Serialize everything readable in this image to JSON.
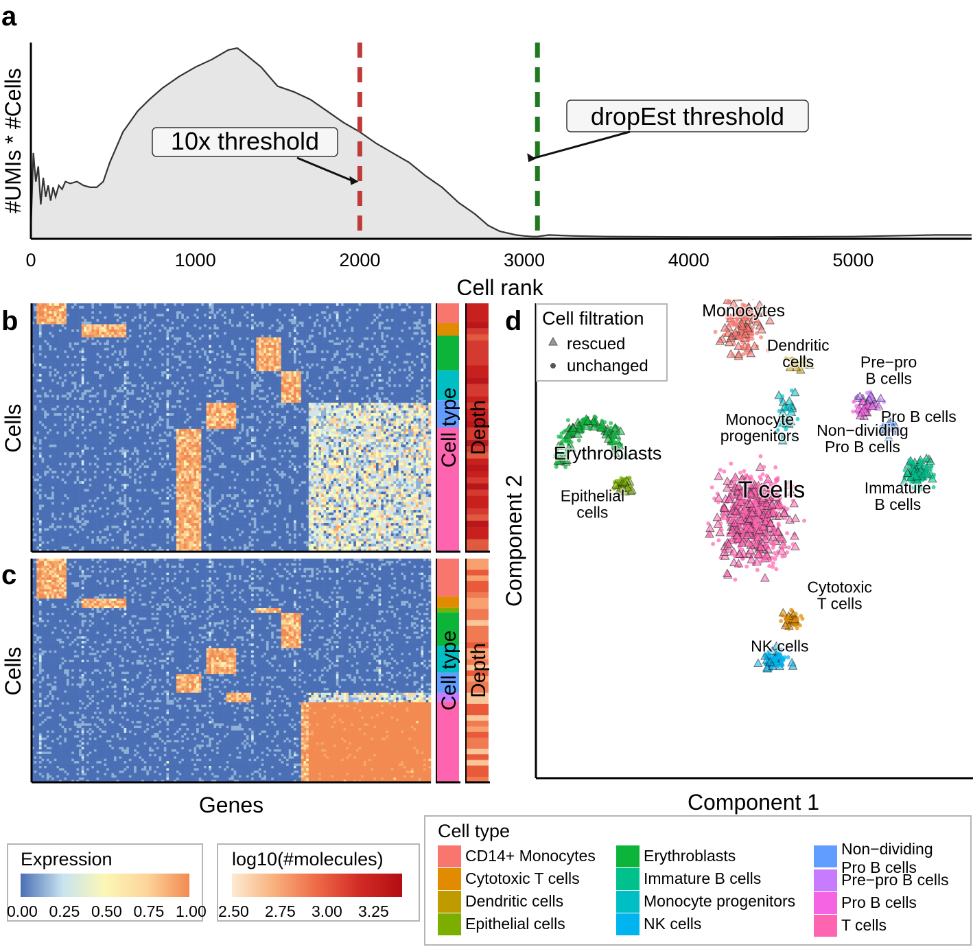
{
  "panels": {
    "a": "a",
    "b": "b",
    "c": "c",
    "d": "d"
  },
  "chart_data": [
    {
      "id": "a",
      "type": "area",
      "xlabel": "Cell rank",
      "ylabel": "#UMIs * #Cells",
      "xlim": [
        0,
        5720
      ],
      "xticks": [
        0,
        1000,
        2000,
        3000,
        4000,
        5000
      ],
      "x": [
        0,
        15,
        30,
        45,
        60,
        75,
        90,
        105,
        120,
        135,
        150,
        170,
        190,
        210,
        240,
        280,
        320,
        360,
        400,
        440,
        480,
        560,
        650,
        720,
        800,
        900,
        1000,
        1100,
        1200,
        1255,
        1300,
        1400,
        1500,
        1600,
        1700,
        1800,
        1900,
        2000,
        2100,
        2200,
        2300,
        2400,
        2500,
        2600,
        2700,
        2780,
        2850,
        2900,
        2950,
        3000,
        3050,
        3080,
        3150,
        3300,
        3500,
        4000,
        4500,
        5000,
        5500,
        5720
      ],
      "values": [
        0.05,
        0.45,
        0.3,
        0.38,
        0.18,
        0.32,
        0.22,
        0.28,
        0.2,
        0.27,
        0.22,
        0.28,
        0.26,
        0.3,
        0.29,
        0.3,
        0.28,
        0.27,
        0.27,
        0.3,
        0.4,
        0.56,
        0.67,
        0.73,
        0.79,
        0.85,
        0.9,
        0.94,
        0.99,
        1.0,
        0.97,
        0.9,
        0.8,
        0.77,
        0.73,
        0.67,
        0.61,
        0.56,
        0.5,
        0.45,
        0.4,
        0.33,
        0.27,
        0.19,
        0.13,
        0.07,
        0.04,
        0.03,
        0.02,
        0.015,
        0.012,
        0.012,
        0.02,
        0.015,
        0.012,
        0.01,
        0.01,
        0.012,
        0.02,
        0.02
      ],
      "thresholds": [
        {
          "name": "10x threshold",
          "x": 2000,
          "color": "#c03a3a"
        },
        {
          "name": "dropEst threshold",
          "x": 3080,
          "color": "#1f7a1f"
        }
      ]
    },
    {
      "id": "b",
      "type": "heatmap",
      "xlabel": "Genes",
      "ylabel": "Cells",
      "side_bars": [
        "Cell type",
        "Depth"
      ],
      "cell_type_blocks": [
        {
          "type": "CD14+ Monocytes",
          "fraction": 0.08
        },
        {
          "type": "Cytotoxic T cells",
          "fraction": 0.05
        },
        {
          "type": "Erythroblasts",
          "fraction": 0.14
        },
        {
          "type": "Monocyte progenitors",
          "fraction": 0.12
        },
        {
          "type": "Non-dividing Pro B cells",
          "fraction": 0.11
        },
        {
          "type": "T cells",
          "fraction": 0.5
        }
      ]
    },
    {
      "id": "c",
      "type": "heatmap",
      "ylabel": "Cells",
      "side_bars": [
        "Cell type",
        "Depth"
      ],
      "cell_type_blocks": [
        {
          "type": "CD14+ Monocytes",
          "fraction": 0.17
        },
        {
          "type": "Cytotoxic T cells",
          "fraction": 0.05
        },
        {
          "type": "Epithelial cells",
          "fraction": 0.02
        },
        {
          "type": "Erythroblasts",
          "fraction": 0.15
        },
        {
          "type": "Monocyte progenitors",
          "fraction": 0.12
        },
        {
          "type": "Non-dividing Pro B cells",
          "fraction": 0.09
        },
        {
          "type": "Pre-pro B cells",
          "fraction": 0.04
        },
        {
          "type": "T cells",
          "fraction": 0.36
        }
      ]
    },
    {
      "id": "d",
      "type": "scatter",
      "xlabel": "Component 1",
      "ylabel": "Component 2",
      "legend_title": "Cell filtration",
      "legend_items": [
        {
          "label": "rescued",
          "shape": "triangle"
        },
        {
          "label": "unchanged",
          "shape": "circle"
        }
      ],
      "clusters": [
        {
          "type": "CD14+ Monocytes",
          "label": "CD14+\nMonocytes",
          "cx": -0.05,
          "cy": 0.95,
          "sx": 0.09,
          "sy": 0.12,
          "n": 150
        },
        {
          "type": "Dendritic cells",
          "label": "Dendritic\ncells",
          "cx": 0.2,
          "cy": 0.78,
          "sx": 0.05,
          "sy": 0.03,
          "n": 20
        },
        {
          "type": "Pre-pro B cells",
          "label": "Pre−pro\nB cells",
          "cx": 0.52,
          "cy": 0.62,
          "sx": 0.06,
          "sy": 0.03,
          "n": 30
        },
        {
          "type": "Pro B cells",
          "label": "Pro B cells",
          "cx": 0.5,
          "cy": 0.58,
          "sx": 0.05,
          "sy": 0.03,
          "n": 30
        },
        {
          "type": "Monocyte progenitors",
          "label": "Monocyte\nprogenitors",
          "cx": 0.15,
          "cy": 0.55,
          "sx": 0.04,
          "sy": 0.09,
          "n": 40
        },
        {
          "type": "Non-dividing Pro B cells",
          "label": "Non−dividing\nPro B cells",
          "cx": 0.62,
          "cy": 0.5,
          "sx": 0.04,
          "sy": 0.03,
          "n": 35
        },
        {
          "type": "Erythroblasts",
          "label": "Erythroblasts",
          "cx": -0.75,
          "cy": 0.45,
          "sx": 0.12,
          "sy": 0.15,
          "n": 170
        },
        {
          "type": "Immature B cells",
          "label": "Immature\nB cells",
          "cx": 0.75,
          "cy": 0.3,
          "sx": 0.06,
          "sy": 0.06,
          "n": 120
        },
        {
          "type": "Epithelial cells",
          "label": "Epithelial\ncells",
          "cx": -0.6,
          "cy": 0.25,
          "sx": 0.04,
          "sy": 0.03,
          "n": 35
        },
        {
          "type": "T cells",
          "label": "T cells",
          "cx": 0.0,
          "cy": 0.1,
          "sx": 0.16,
          "sy": 0.2,
          "n": 650
        },
        {
          "type": "Cytotoxic T cells",
          "label": "Cytotoxic\nT cells",
          "cx": 0.17,
          "cy": -0.35,
          "sx": 0.04,
          "sy": 0.04,
          "n": 45
        },
        {
          "type": "NK cells",
          "label": "NK cells",
          "cx": 0.1,
          "cy": -0.52,
          "sx": 0.06,
          "sy": 0.04,
          "n": 70
        }
      ]
    }
  ],
  "legends": {
    "expression": {
      "title": "Expression",
      "ticks": [
        "0.00",
        "0.25",
        "0.50",
        "0.75",
        "1.00"
      ]
    },
    "molecules": {
      "title": "log10(#molecules)",
      "ticks": [
        "2.50",
        "2.75",
        "3.00",
        "3.25"
      ]
    },
    "cell_type": {
      "title": "Cell type",
      "items": [
        {
          "label": "CD14+ Monocytes",
          "color": "#f8766d"
        },
        {
          "label": "Cytotoxic T cells",
          "color": "#e08b00"
        },
        {
          "label": "Dendritic cells",
          "color": "#c09b00"
        },
        {
          "label": "Epithelial cells",
          "color": "#7cae00"
        },
        {
          "label": "Erythroblasts",
          "color": "#0cb43a"
        },
        {
          "label": "Immature B cells",
          "color": "#00c08b"
        },
        {
          "label": "Monocyte progenitors",
          "color": "#00bfc4"
        },
        {
          "label": "NK cells",
          "color": "#00b4f0"
        },
        {
          "label": "Non−dividing\nPro B cells",
          "color": "#619cff"
        },
        {
          "label": "Pre−pro B cells",
          "color": "#c77cff"
        },
        {
          "label": "Pro B cells",
          "color": "#f564e3"
        },
        {
          "label": "T cells",
          "color": "#ff64b0"
        }
      ]
    }
  }
}
